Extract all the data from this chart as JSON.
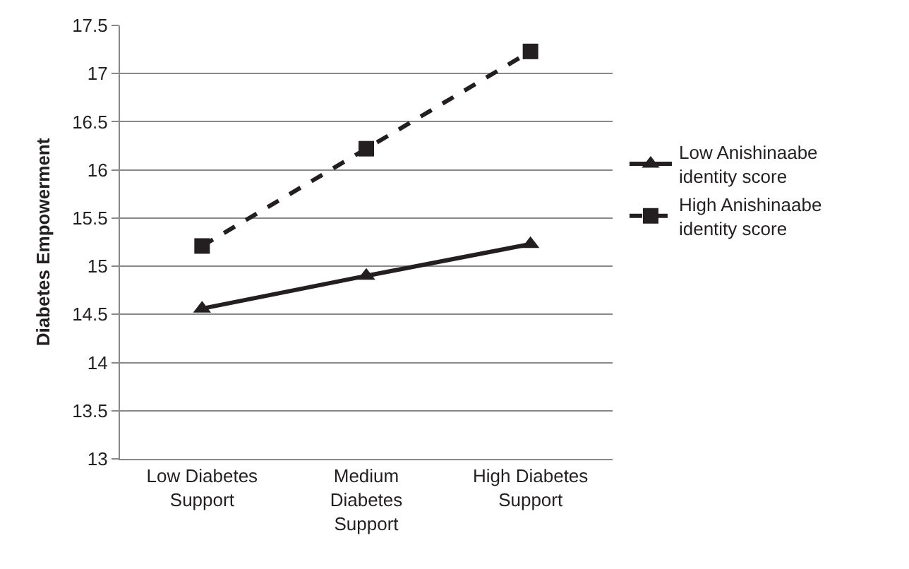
{
  "chart_data": {
    "type": "line",
    "ylabel": "Diabetes Empowerment",
    "categories": [
      "Low Diabetes Support",
      "Medium Diabetes Support",
      "High Diabetes Support"
    ],
    "series": [
      {
        "name": "Low Anishinaabe identity score",
        "color": "#231f20",
        "values": [
          14.56,
          14.9,
          15.23
        ],
        "marker": "triangle",
        "line_style": "solid"
      },
      {
        "name": "High Anishinaabe identity score",
        "color": "#231f20",
        "values": [
          15.21,
          16.22,
          17.23
        ],
        "marker": "square",
        "line_style": "dashed"
      }
    ],
    "ylim": [
      13,
      17.5
    ],
    "yticks": [
      13,
      13.5,
      14,
      14.5,
      15,
      15.5,
      16,
      16.5,
      17,
      17.5
    ],
    "grid": "y",
    "legend": "right"
  }
}
